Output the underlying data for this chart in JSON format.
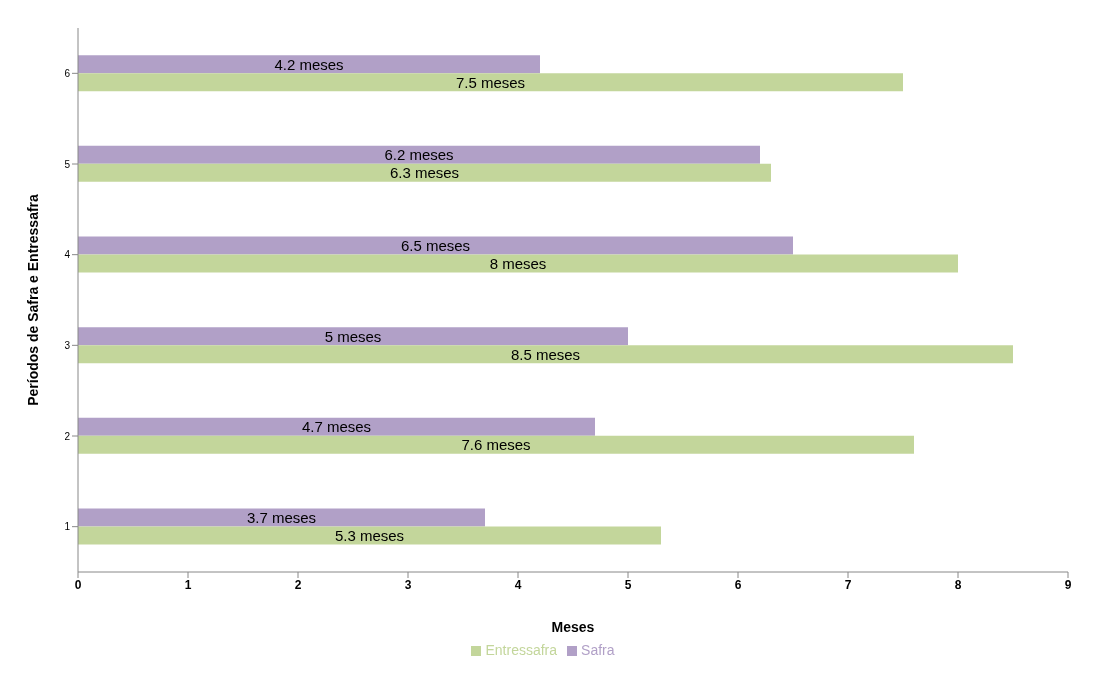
{
  "chart_data": {
    "type": "bar",
    "orientation": "horizontal",
    "xlabel": "Meses",
    "ylabel": "Períodos de Safra e Entressafra",
    "categories": [
      "6",
      "5",
      "4",
      "3",
      "2",
      "1"
    ],
    "series": [
      {
        "name": "Safra",
        "color": "#b1a0c7",
        "values": [
          4.2,
          6.2,
          6.5,
          5,
          4.7,
          3.7
        ],
        "value_labels": [
          "4.2 meses",
          "6.2 meses",
          "6.5 meses",
          "5 meses",
          "4.7 meses",
          "3.7 meses"
        ]
      },
      {
        "name": "Entressafra",
        "color": "#c3d69b",
        "values": [
          7.5,
          6.3,
          8,
          8.5,
          7.6,
          5.3
        ],
        "value_labels": [
          "7.5 meses",
          "6.3 meses",
          "8 meses",
          "8.5 meses",
          "7.6 meses",
          "5.3 meses"
        ]
      }
    ],
    "xlim": [
      0,
      9
    ],
    "xticks": [
      0,
      1,
      2,
      3,
      4,
      5,
      6,
      7,
      8,
      9
    ],
    "grid": false,
    "legend": "bottom"
  }
}
